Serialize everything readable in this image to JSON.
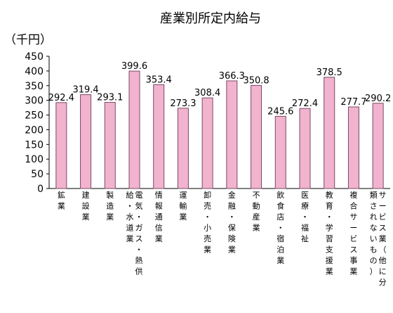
{
  "chart_data": {
    "type": "bar",
    "title": "産業別所定内給与",
    "ylabel": "（千円）",
    "xlabel": "",
    "ylim": [
      0,
      450
    ],
    "yticks": [
      0,
      50,
      100,
      150,
      200,
      250,
      300,
      350,
      400,
      450
    ],
    "grid": false,
    "legend": "none",
    "bar_color": "#f2b3cf",
    "bar_edge_color": "#7a4a63",
    "categories": [
      [
        "鉱業"
      ],
      [
        "建設業"
      ],
      [
        "製造業"
      ],
      [
        "電気・ガス・熱供",
        "給・水道業"
      ],
      [
        "情報通信業"
      ],
      [
        "運輸業"
      ],
      [
        "卸売・小売業"
      ],
      [
        "金融・保険業"
      ],
      [
        "不動産業"
      ],
      [
        "飲食店・宿泊業"
      ],
      [
        "医療・福祉"
      ],
      [
        "教育・学習支援業"
      ],
      [
        "複合サービス事業"
      ],
      [
        "サービス業（他に分",
        "類されないもの）"
      ]
    ],
    "values": [
      292.4,
      319.4,
      293.1,
      399.6,
      353.4,
      273.3,
      308.4,
      366.3,
      350.8,
      245.6,
      272.4,
      378.5,
      277.7,
      290.2
    ],
    "data_labels": [
      "292.4",
      "319.4",
      "293.1",
      "399.6",
      "353.4",
      "273.3",
      "308.4",
      "366.3",
      "350.8",
      "245.6",
      "272.4",
      "378.5",
      "277.7",
      "290.2"
    ]
  }
}
